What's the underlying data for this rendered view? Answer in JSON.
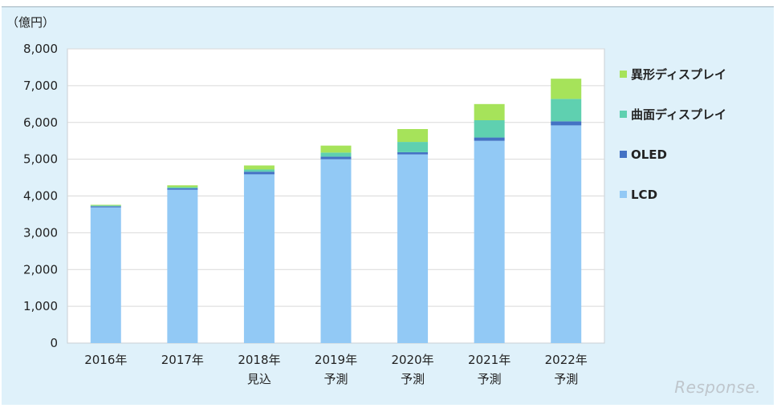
{
  "chart_data": {
    "type": "bar",
    "stacked": true,
    "title": "",
    "unit_label": "（億円）",
    "xlabel": "",
    "ylabel": "",
    "ylim": [
      0,
      8000
    ],
    "yticks": [
      "0",
      "1,000",
      "2,000",
      "3,000",
      "4,000",
      "5,000",
      "6,000",
      "7,000",
      "8,000"
    ],
    "categories": [
      [
        "2016年"
      ],
      [
        "2017年"
      ],
      [
        "2018年",
        "見込"
      ],
      [
        "2019年",
        "予測"
      ],
      [
        "2020年",
        "予測"
      ],
      [
        "2021年",
        "予測"
      ],
      [
        "2022年",
        "予測"
      ]
    ],
    "series": [
      {
        "name": "LCD",
        "color": "#92c9f5",
        "values": [
          3690,
          4170,
          4590,
          5000,
          5130,
          5500,
          5920
        ]
      },
      {
        "name": "OLED",
        "color": "#4472c4",
        "values": [
          30,
          40,
          70,
          70,
          60,
          90,
          110
        ]
      },
      {
        "name": "曲面ディスプレイ",
        "color": "#5fd0b0",
        "values": [
          20,
          30,
          60,
          110,
          280,
          470,
          610
        ]
      },
      {
        "name": "異形ディスプレイ",
        "color": "#a6e35a",
        "values": [
          20,
          50,
          110,
          190,
          350,
          440,
          550
        ]
      }
    ],
    "legend_placement": "right",
    "legend_order": [
      "異形ディスプレイ",
      "曲面ディスプレイ",
      "OLED",
      "LCD"
    ],
    "grid": true
  },
  "watermark": "Response."
}
